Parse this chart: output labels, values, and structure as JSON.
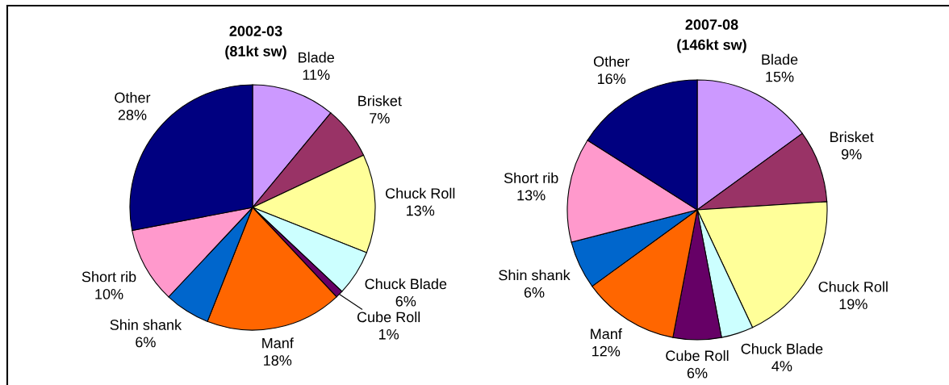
{
  "chart_data": [
    {
      "type": "pie",
      "title": "2002-03",
      "subtitle": "(81kt sw)",
      "categories": [
        "Blade",
        "Brisket",
        "Chuck Roll",
        "Chuck Blade",
        "Cube Roll",
        "Manf",
        "Shin shank",
        "Short rib",
        "Other"
      ],
      "values": [
        11,
        7,
        13,
        6,
        1,
        18,
        6,
        10,
        28
      ],
      "colors": [
        "#cc99ff",
        "#993366",
        "#ffff99",
        "#ccffff",
        "#660066",
        "#ff6600",
        "#0066cc",
        "#ff99cc",
        "#000080"
      ],
      "value_labels": [
        "11%",
        "7%",
        "13%",
        "6%",
        "1%",
        "18%",
        "6%",
        "10%",
        "28%"
      ]
    },
    {
      "type": "pie",
      "title": "2007-08",
      "subtitle": "(146kt sw)",
      "categories": [
        "Blade",
        "Brisket",
        "Chuck Roll",
        "Chuck Blade",
        "Cube Roll",
        "Manf",
        "Shin shank",
        "Short rib",
        "Other"
      ],
      "values": [
        15,
        9,
        19,
        4,
        6,
        12,
        6,
        13,
        16
      ],
      "colors": [
        "#cc99ff",
        "#993366",
        "#ffff99",
        "#ccffff",
        "#660066",
        "#ff6600",
        "#0066cc",
        "#ff99cc",
        "#000080"
      ],
      "value_labels": [
        "15%",
        "9%",
        "19%",
        "4%",
        "6%",
        "12%",
        "6%",
        "13%",
        "16%"
      ]
    }
  ]
}
